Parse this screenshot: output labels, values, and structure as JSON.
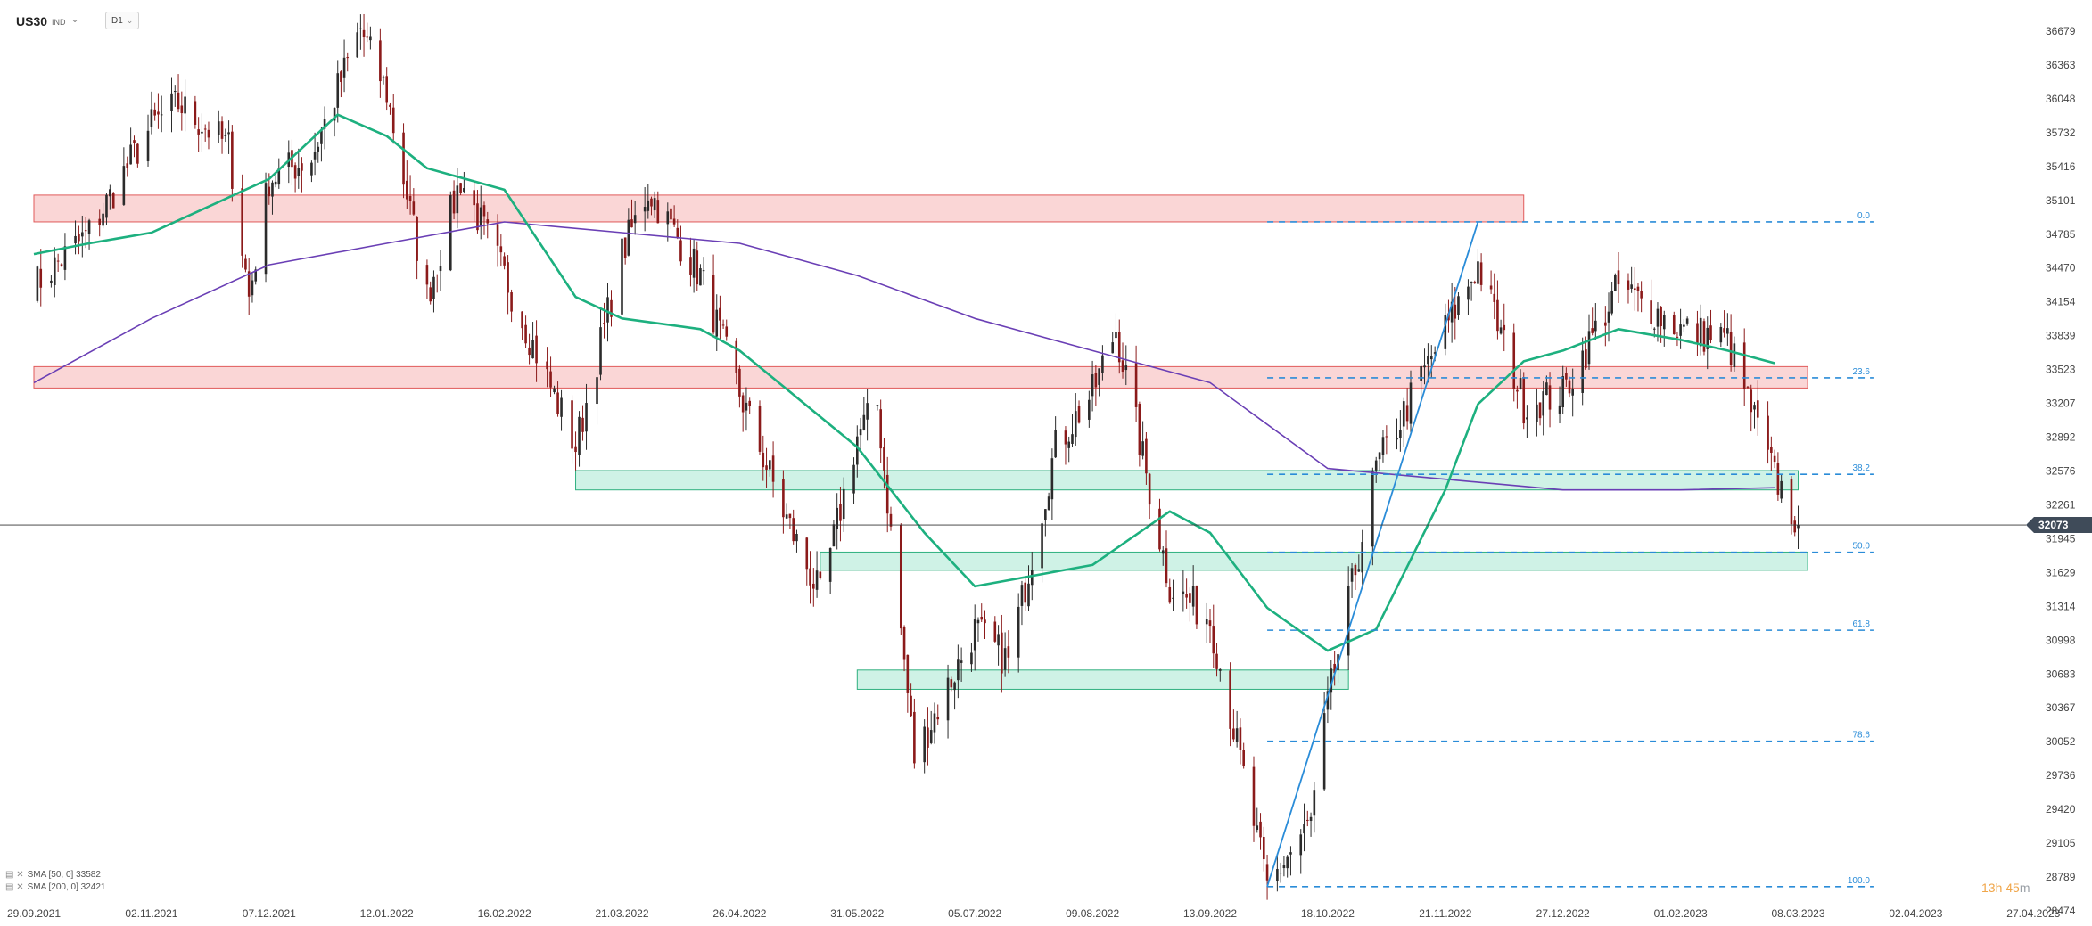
{
  "header": {
    "symbol": "US30",
    "symbol_tag": "IND",
    "timeframe": "D1"
  },
  "chart_data": {
    "type": "candlestick",
    "y_axis_ticks": [
      36679,
      36363,
      36048,
      35732,
      35416,
      35101,
      34785,
      34470,
      34154,
      33839,
      33523,
      33207,
      32892,
      32576,
      32261,
      31945,
      31629,
      31314,
      30998,
      30683,
      30367,
      30052,
      29736,
      29420,
      29105,
      28789,
      28474
    ],
    "x_axis_ticks": [
      "29.09.2021",
      "02.11.2021",
      "07.12.2021",
      "12.01.2022",
      "16.02.2022",
      "21.03.2022",
      "26.04.2022",
      "31.05.2022",
      "05.07.2022",
      "09.08.2022",
      "13.09.2022",
      "18.10.2022",
      "21.11.2022",
      "27.12.2022",
      "01.02.2023",
      "08.03.2023",
      "02.04.2023",
      "27.04.2023"
    ],
    "current_price": "32073",
    "close_path": [
      [
        "29.09.2021",
        34300
      ],
      [
        "15.10.2021",
        34800
      ],
      [
        "02.11.2021",
        35800
      ],
      [
        "10.11.2021",
        36000
      ],
      [
        "25.11.2021",
        35600
      ],
      [
        "01.12.2021",
        34200
      ],
      [
        "07.12.2021",
        35300
      ],
      [
        "20.12.2021",
        35500
      ],
      [
        "04.01.2022",
        36700
      ],
      [
        "12.01.2022",
        36100
      ],
      [
        "24.01.2022",
        34200
      ],
      [
        "03.02.2022",
        35300
      ],
      [
        "16.02.2022",
        34400
      ],
      [
        "08.03.2022",
        32800
      ],
      [
        "21.03.2022",
        34600
      ],
      [
        "29.03.2022",
        35200
      ],
      [
        "14.04.2022",
        34400
      ],
      [
        "26.04.2022",
        33300
      ],
      [
        "09.05.2022",
        32200
      ],
      [
        "20.05.2022",
        31400
      ],
      [
        "31.05.2022",
        32900
      ],
      [
        "06.06.2022",
        33200
      ],
      [
        "17.06.2022",
        29900
      ],
      [
        "05.07.2022",
        31100
      ],
      [
        "15.07.2022",
        30800
      ],
      [
        "29.07.2022",
        32800
      ],
      [
        "09.08.2022",
        33300
      ],
      [
        "16.08.2022",
        33900
      ],
      [
        "01.09.2022",
        31500
      ],
      [
        "13.09.2022",
        31200
      ],
      [
        "30.09.2022",
        28700
      ],
      [
        "13.10.2022",
        29300
      ],
      [
        "18.10.2022",
        30400
      ],
      [
        "01.11.2022",
        32600
      ],
      [
        "21.11.2022",
        33900
      ],
      [
        "01.12.2022",
        34500
      ],
      [
        "15.12.2022",
        33200
      ],
      [
        "27.12.2022",
        33300
      ],
      [
        "13.01.2023",
        34300
      ],
      [
        "01.02.2023",
        33900
      ],
      [
        "15.02.2023",
        33800
      ],
      [
        "28.02.2023",
        32600
      ],
      [
        "08.03.2023",
        32073
      ]
    ],
    "sma50": [
      [
        "29.09.2021",
        34600
      ],
      [
        "15.10.2021",
        34700
      ],
      [
        "02.11.2021",
        34800
      ],
      [
        "07.12.2021",
        35300
      ],
      [
        "28.12.2021",
        35900
      ],
      [
        "12.01.2022",
        35700
      ],
      [
        "24.01.2022",
        35400
      ],
      [
        "16.02.2022",
        35200
      ],
      [
        "08.03.2022",
        34200
      ],
      [
        "21.03.2022",
        34000
      ],
      [
        "14.04.2022",
        33900
      ],
      [
        "26.04.2022",
        33700
      ],
      [
        "31.05.2022",
        32800
      ],
      [
        "20.06.2022",
        32000
      ],
      [
        "05.07.2022",
        31500
      ],
      [
        "09.08.2022",
        31700
      ],
      [
        "01.09.2022",
        32200
      ],
      [
        "13.09.2022",
        32000
      ],
      [
        "30.09.2022",
        31300
      ],
      [
        "18.10.2022",
        30900
      ],
      [
        "01.11.2022",
        31100
      ],
      [
        "21.11.2022",
        32400
      ],
      [
        "01.12.2022",
        33200
      ],
      [
        "15.12.2022",
        33600
      ],
      [
        "27.12.2022",
        33700
      ],
      [
        "13.01.2023",
        33900
      ],
      [
        "01.02.2023",
        33800
      ],
      [
        "15.02.2023",
        33700
      ],
      [
        "01.03.2023",
        33582
      ]
    ],
    "sma200": [
      [
        "29.09.2021",
        33400
      ],
      [
        "02.11.2021",
        34000
      ],
      [
        "07.12.2021",
        34500
      ],
      [
        "12.01.2022",
        34700
      ],
      [
        "16.02.2022",
        34900
      ],
      [
        "21.03.2022",
        34800
      ],
      [
        "26.04.2022",
        34700
      ],
      [
        "31.05.2022",
        34400
      ],
      [
        "05.07.2022",
        34000
      ],
      [
        "09.08.2022",
        33700
      ],
      [
        "13.09.2022",
        33400
      ],
      [
        "18.10.2022",
        32600
      ],
      [
        "21.11.2022",
        32500
      ],
      [
        "27.12.2022",
        32400
      ],
      [
        "01.02.2023",
        32400
      ],
      [
        "01.03.2023",
        32421
      ]
    ],
    "zones": [
      {
        "type": "resistance",
        "from": "29.09.2021",
        "to": "15.12.2022",
        "low": 34900,
        "high": 35150
      },
      {
        "type": "resistance",
        "from": "29.09.2021",
        "to": "10.03.2023",
        "low": 33350,
        "high": 33550
      },
      {
        "type": "support",
        "from": "08.03.2022",
        "to": "08.03.2023",
        "low": 32400,
        "high": 32580
      },
      {
        "type": "support",
        "from": "20.05.2022",
        "to": "10.03.2023",
        "low": 31650,
        "high": 31820
      },
      {
        "type": "support",
        "from": "31.05.2022",
        "to": "24.10.2022",
        "low": 30540,
        "high": 30720
      }
    ],
    "fibonacci": {
      "from": "30.09.2022",
      "to": "24.03.2023",
      "levels": [
        {
          "label": "0.0",
          "price": 34900
        },
        {
          "label": "23.6",
          "price": 33445
        },
        {
          "label": "38.2",
          "price": 32545
        },
        {
          "label": "50.0",
          "price": 31818
        },
        {
          "label": "61.8",
          "price": 31091
        },
        {
          "label": "78.6",
          "price": 30056
        },
        {
          "label": "100.0",
          "price": 28700
        }
      ]
    },
    "trendline": {
      "from": [
        "30.09.2022",
        28700
      ],
      "to": [
        "01.12.2022",
        34900
      ]
    },
    "colors": {
      "bull_candle": "#2b2b2b",
      "bear_candle": "#8b1a1a",
      "sma50": "#1db07f",
      "sma200": "#6a3fb5",
      "fib": "#2a8cd8",
      "trendline": "#2a8cd8",
      "resistance_zone": "#f8c8c8",
      "support_zone": "#bfeedd",
      "price_tag": "#3f4b59"
    }
  },
  "legend": [
    {
      "icons": "▤ ✕",
      "text": "SMA [50, 0] 33582"
    },
    {
      "icons": "▤ ✕",
      "text": "SMA [200, 0] 32421"
    }
  ],
  "timer": {
    "value": "13h 45",
    "suffix": "m"
  }
}
